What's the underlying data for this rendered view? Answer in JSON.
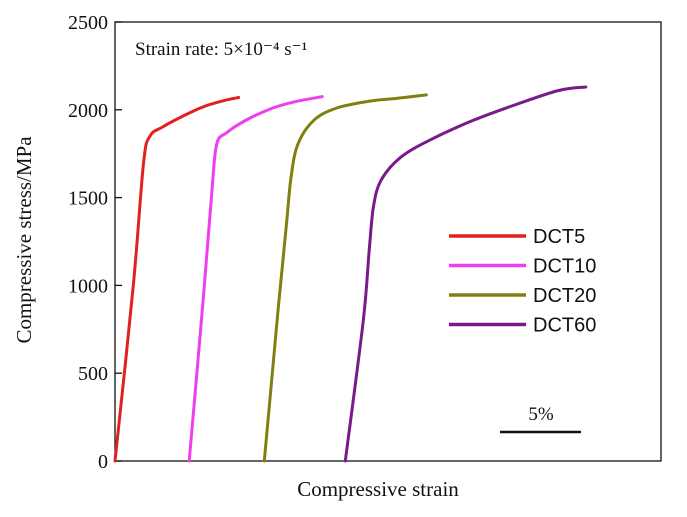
{
  "chart_data": {
    "type": "line",
    "annotation": "Strain rate: 5×10⁻⁴ s⁻¹",
    "xlabel": "Compressive strain",
    "ylabel": "Compressive stress/MPa",
    "ylim": [
      0,
      2500
    ],
    "yticks": [
      "0",
      "500",
      "1000",
      "1500",
      "2000",
      "2500"
    ],
    "scale_bar_label": "5%",
    "legend_position": "right",
    "grid": false,
    "series": [
      {
        "name": "DCT5",
        "color": "#e32021",
        "points": [
          [
            0.0,
            0
          ],
          [
            2.15,
            1000
          ],
          [
            3.35,
            1700
          ],
          [
            4.1,
            1850
          ],
          [
            5.5,
            1900
          ],
          [
            8.0,
            1965
          ],
          [
            10.5,
            2020
          ],
          [
            13.0,
            2055
          ],
          [
            14.5,
            2070
          ]
        ]
      },
      {
        "name": "DCT10",
        "color": "#ef3ef0",
        "points": [
          [
            8.7,
            0
          ],
          [
            10.3,
            900
          ],
          [
            11.3,
            1500
          ],
          [
            11.9,
            1800
          ],
          [
            13.1,
            1870
          ],
          [
            15.5,
            1945
          ],
          [
            18.5,
            2010
          ],
          [
            21.0,
            2045
          ],
          [
            24.3,
            2075
          ]
        ]
      },
      {
        "name": "DCT20",
        "color": "#808012",
        "points": [
          [
            17.5,
            0
          ],
          [
            19.1,
            850
          ],
          [
            20.1,
            1350
          ],
          [
            20.6,
            1600
          ],
          [
            21.4,
            1800
          ],
          [
            23.3,
            1940
          ],
          [
            26.0,
            2010
          ],
          [
            30.0,
            2050
          ],
          [
            33.0,
            2065
          ],
          [
            36.5,
            2085
          ]
        ]
      },
      {
        "name": "DCT60",
        "color": "#7a1a8a",
        "points": [
          [
            27.0,
            0
          ],
          [
            29.1,
            800
          ],
          [
            29.8,
            1200
          ],
          [
            30.3,
            1450
          ],
          [
            31.2,
            1600
          ],
          [
            33.5,
            1730
          ],
          [
            37.0,
            1830
          ],
          [
            42.0,
            1940
          ],
          [
            47.0,
            2030
          ],
          [
            52.0,
            2110
          ],
          [
            55.2,
            2130
          ]
        ]
      }
    ],
    "x_domain": [
      0,
      64
    ]
  }
}
